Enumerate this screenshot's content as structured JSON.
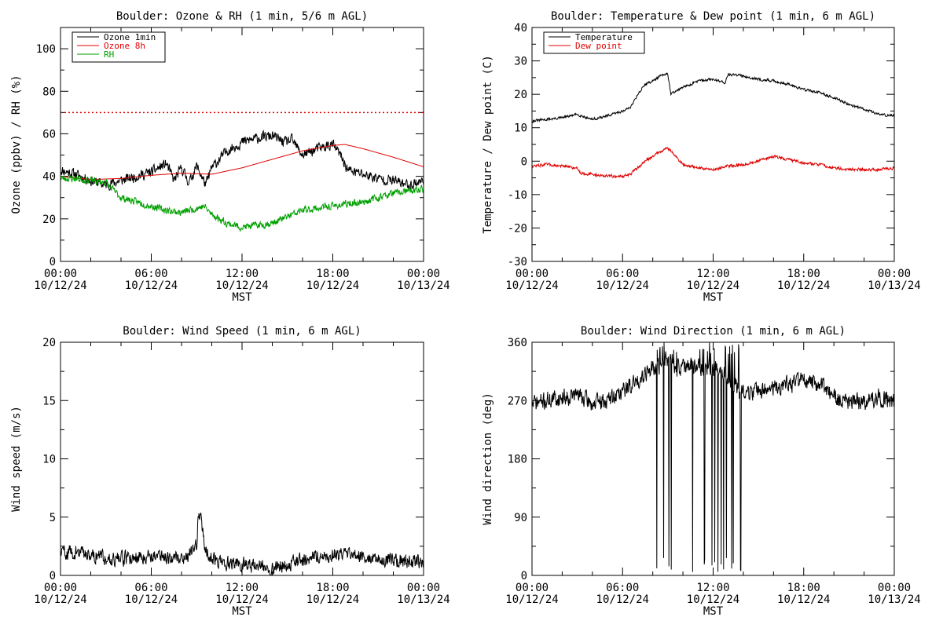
{
  "colors": {
    "black": "#000000",
    "red": "#e00000",
    "green": "#00a000",
    "background": "#ffffff"
  },
  "x_axis": {
    "label": "MST",
    "tick_times": [
      "00:00",
      "06:00",
      "12:00",
      "18:00",
      "00:00"
    ],
    "tick_dates": [
      "10/12/24",
      "10/12/24",
      "10/12/24",
      "10/12/24",
      "10/13/24"
    ],
    "range_hours": [
      0,
      24
    ],
    "major_step_hours": 6,
    "minor_step_hours": 2
  },
  "chart_data": [
    {
      "type": "line",
      "title": "Boulder: Ozone & RH (1 min, 5/6 m AGL)",
      "ylabel": "Ozone (ppbv) / RH (%)",
      "ylim": [
        0,
        110
      ],
      "yticks": [
        0,
        20,
        40,
        60,
        80,
        100
      ],
      "legend_position": "top-left",
      "reference_line": {
        "y": 70,
        "style": "dotted",
        "color": "#e00000"
      },
      "series": [
        {
          "name": "Ozone 1min",
          "color": "#000000",
          "noise": 2.2,
          "seed": 11,
          "x": [
            0,
            1,
            2,
            3,
            4,
            5,
            6,
            7,
            7.5,
            8,
            8.5,
            9,
            9.6,
            10,
            11,
            12,
            13,
            14,
            14.8,
            15.3,
            16,
            17,
            18,
            18.5,
            19,
            20,
            21,
            22,
            23,
            24
          ],
          "y": [
            43,
            41,
            38,
            36,
            38,
            40,
            42,
            46,
            38,
            44,
            37,
            45,
            36,
            44,
            52,
            56,
            58,
            59,
            56,
            57,
            50,
            53,
            55,
            50,
            43,
            41,
            39,
            38,
            36,
            38
          ]
        },
        {
          "name": "Ozone 8h",
          "color": "#e00000",
          "noise": 0,
          "seed": 0,
          "x": [
            0,
            2,
            4,
            6,
            8,
            10,
            12,
            14,
            16,
            18,
            18.8,
            20,
            22,
            24
          ],
          "y": [
            40,
            38.5,
            39,
            40.5,
            41.5,
            41,
            44,
            48,
            52,
            54.5,
            55,
            53,
            49,
            44.5
          ]
        },
        {
          "name": "RH",
          "color": "#00a000",
          "noise": 1.5,
          "seed": 23,
          "x": [
            0,
            1,
            2,
            3,
            4,
            5,
            6,
            7,
            8,
            9,
            9.5,
            10,
            11,
            12,
            13,
            14,
            15,
            16,
            17,
            18,
            19,
            20,
            21,
            22,
            23,
            24
          ],
          "y": [
            39,
            39,
            38,
            37,
            30,
            28,
            26,
            24,
            23,
            25,
            26,
            22,
            18,
            16,
            17,
            18,
            21,
            24,
            25,
            26,
            27,
            28,
            30,
            32,
            33,
            34
          ]
        }
      ]
    },
    {
      "type": "line",
      "title": "Boulder: Temperature & Dew point (1 min, 6 m AGL)",
      "ylabel": "Temperature / Dew point (C)",
      "ylim": [
        -30,
        40
      ],
      "yticks": [
        -30,
        -20,
        -10,
        0,
        10,
        20,
        30,
        40
      ],
      "legend_position": "top-left",
      "series": [
        {
          "name": "Temperature",
          "color": "#000000",
          "noise": 0.35,
          "seed": 31,
          "x": [
            0,
            1,
            2,
            3,
            4,
            5,
            6,
            6.5,
            7,
            7.5,
            8,
            8.5,
            9,
            9.2,
            9.5,
            10,
            11,
            12,
            12.8,
            13,
            14,
            15,
            16,
            17,
            18,
            19,
            20,
            21,
            22,
            23,
            24
          ],
          "y": [
            12,
            12.5,
            13,
            14,
            12.5,
            13.5,
            15,
            16,
            20,
            23,
            24,
            25.5,
            26,
            20,
            21,
            22,
            24,
            24.5,
            23.5,
            26,
            25.5,
            24.5,
            24,
            23,
            21.5,
            20.5,
            19,
            17,
            15.5,
            14,
            13.5
          ]
        },
        {
          "name": "Dew point",
          "color": "#e00000",
          "noise": 0.4,
          "seed": 47,
          "x": [
            0,
            1,
            2,
            3,
            3.2,
            4,
            5,
            6,
            6.5,
            7,
            7.5,
            8,
            8.5,
            9,
            9.5,
            10,
            11,
            12,
            13,
            14,
            15,
            16,
            17,
            18,
            19,
            20,
            21,
            22,
            23,
            24
          ],
          "y": [
            -1.5,
            -1,
            -1.5,
            -2,
            -3.5,
            -4,
            -4.5,
            -4.5,
            -4,
            -2,
            0,
            1.5,
            3,
            4,
            1.5,
            -1,
            -2,
            -2.5,
            -1.5,
            -1,
            0,
            1.5,
            0.5,
            -0.5,
            -1,
            -2,
            -2.5,
            -2.5,
            -2.5,
            -2
          ]
        }
      ]
    },
    {
      "type": "line",
      "title": "Boulder: Wind Speed (1 min, 6 m AGL)",
      "ylabel": "Wind speed (m/s)",
      "ylim": [
        0,
        20
      ],
      "yticks": [
        0,
        5,
        10,
        15,
        20
      ],
      "series": [
        {
          "name": "",
          "color": "#000000",
          "noise": 0.55,
          "seed": 59,
          "x": [
            0,
            1,
            2,
            3,
            4,
            5,
            6,
            7,
            8,
            8.5,
            9,
            9.1,
            9.3,
            9.5,
            10,
            11,
            12,
            13,
            14,
            15,
            16,
            17,
            18,
            19,
            20,
            21,
            22,
            23,
            24
          ],
          "y": [
            2,
            2,
            1.8,
            1.5,
            1.4,
            1.6,
            1.7,
            1.6,
            1.5,
            1.8,
            2.5,
            5.5,
            5,
            2.5,
            1.5,
            1,
            1,
            0.8,
            0.7,
            1,
            1.3,
            1.6,
            1.8,
            1.7,
            1.7,
            1.5,
            1.3,
            1.2,
            1.1
          ]
        }
      ]
    },
    {
      "type": "line",
      "title": "Boulder: Wind Direction (1 min, 6 m AGL)",
      "ylabel": "Wind direction (deg)",
      "ylim": [
        0,
        360
      ],
      "yticks": [
        0,
        90,
        180,
        270,
        360
      ],
      "series": [
        {
          "name": "",
          "color": "#000000",
          "noise": 12,
          "seed": 71,
          "wrap_windows": [
            [
              7.9,
              9.7
            ],
            [
              10.4,
              13.9
            ]
          ],
          "x": [
            0,
            1,
            2,
            3,
            4,
            5,
            6,
            7,
            7.5,
            8,
            9,
            10,
            11,
            12,
            13,
            14,
            15,
            16,
            17,
            18,
            19,
            20,
            21,
            22,
            23,
            24
          ],
          "y": [
            265,
            270,
            275,
            280,
            265,
            270,
            285,
            300,
            315,
            320,
            330,
            320,
            325,
            320,
            305,
            280,
            285,
            290,
            295,
            300,
            295,
            275,
            265,
            270,
            275,
            268
          ]
        }
      ]
    }
  ]
}
